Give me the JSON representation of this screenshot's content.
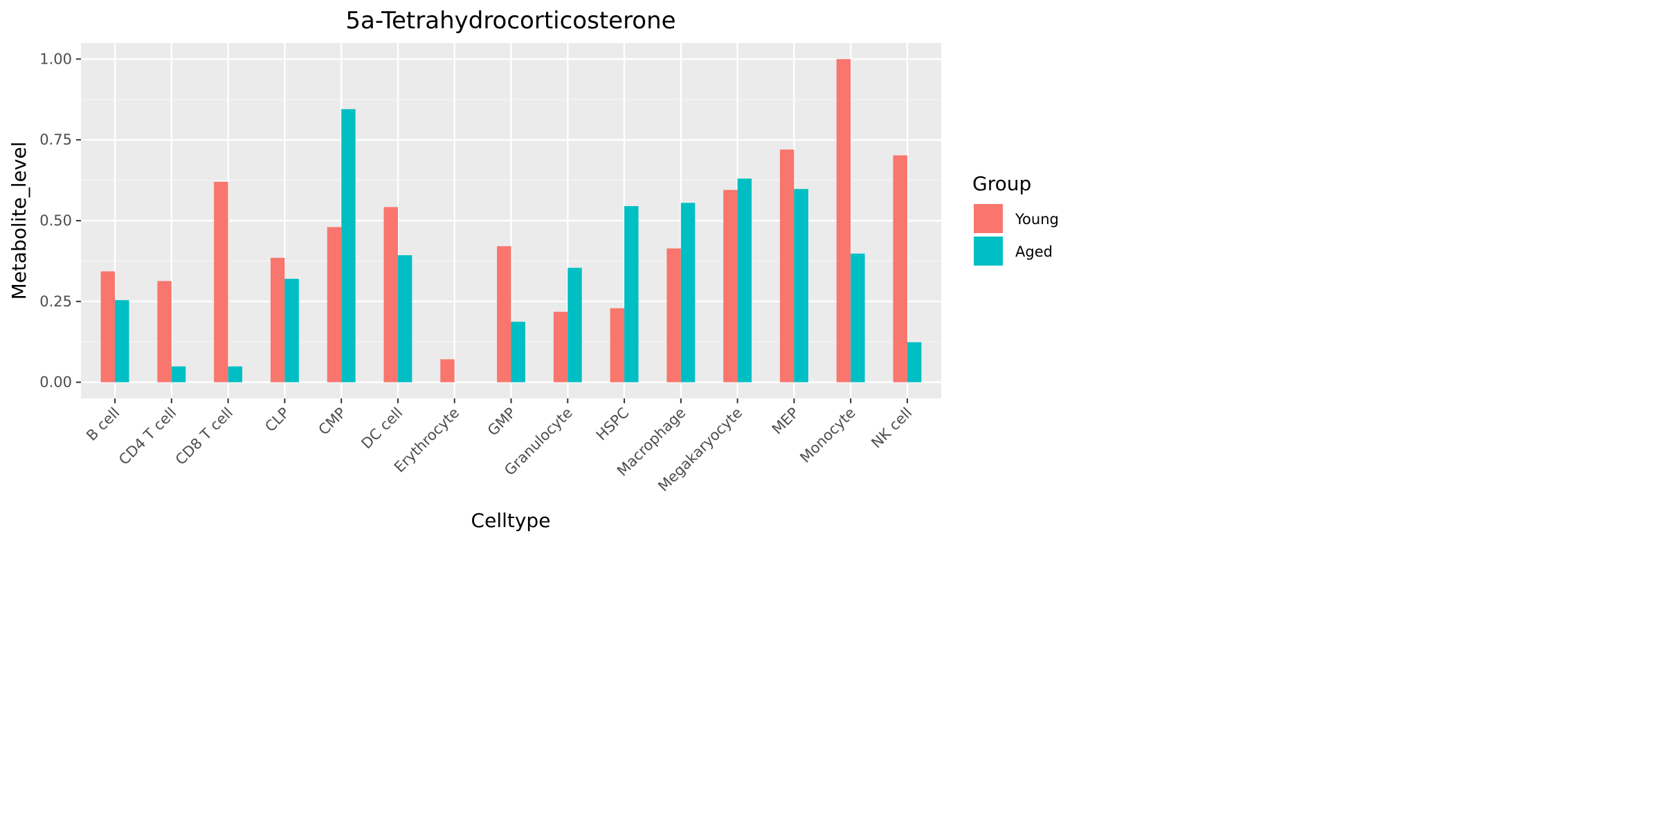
{
  "chart_data": {
    "type": "bar",
    "title": "5a-Tetrahydrocorticosterone",
    "xlabel": "Celltype",
    "ylabel": "Metabolite_level",
    "ylim": [
      -0.05,
      1.05
    ],
    "yticks": [
      0.0,
      0.25,
      0.5,
      0.75,
      1.0
    ],
    "ytick_labels": [
      "0.00",
      "0.25",
      "0.50",
      "0.75",
      "1.00"
    ],
    "grid": true,
    "legend_position": "right",
    "legend_title": "Group",
    "categories": [
      "B cell",
      "CD4 T cell",
      "CD8 T cell",
      "CLP",
      "CMP",
      "DC cell",
      "Erythrocyte",
      "GMP",
      "Granulocyte",
      "HSPC",
      "Macrophage",
      "Megakaryocyte",
      "MEP",
      "Monocyte",
      "NK cell"
    ],
    "series": [
      {
        "name": "Young",
        "color": "#F8766D",
        "values": [
          0.343,
          0.313,
          0.62,
          0.385,
          0.48,
          0.542,
          0.071,
          0.421,
          0.218,
          0.229,
          0.414,
          0.595,
          0.72,
          1.0,
          0.702
        ]
      },
      {
        "name": "Aged",
        "color": "#00BFC4",
        "values": [
          0.254,
          0.049,
          0.049,
          0.32,
          0.845,
          0.393,
          0.0,
          0.187,
          0.354,
          0.545,
          0.555,
          0.63,
          0.598,
          0.398,
          0.124
        ]
      }
    ]
  },
  "colors": {
    "panel_background": "#EBEBEB",
    "grid_major": "#FFFFFF",
    "grid_minor": "#F5F5F5",
    "tick_mark": "#333333"
  }
}
